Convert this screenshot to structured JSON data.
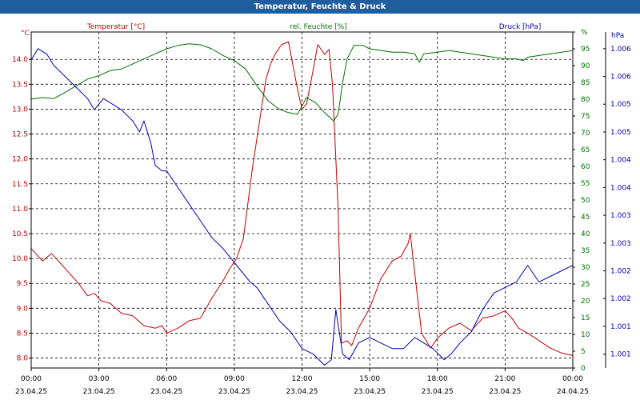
{
  "header": {
    "title": "Temperatur, Feuchte & Druck"
  },
  "chart_data": {
    "type": "line",
    "title": "Temperatur, Feuchte & Druck",
    "x_ticks": [
      {
        "time": "00:00",
        "date": "23.04.25"
      },
      {
        "time": "03:00",
        "date": "23.04.25"
      },
      {
        "time": "06:00",
        "date": "23.04.25"
      },
      {
        "time": "09:00",
        "date": "23.04.25"
      },
      {
        "time": "12:00",
        "date": "23.04.25"
      },
      {
        "time": "15:00",
        "date": "23.04.25"
      },
      {
        "time": "18:00",
        "date": "23.04.25"
      },
      {
        "time": "21:00",
        "date": "23.04.25"
      },
      {
        "time": "00:00",
        "date": "24.04.25"
      }
    ],
    "xlim": [
      0,
      24
    ],
    "colors": {
      "temperature": "#c00000",
      "humidity": "#007000",
      "pressure": "#0000b0"
    },
    "axes": {
      "temperature": {
        "unit": "°C",
        "legend": "Temperatur [°C]",
        "ylim": [
          7.8,
          14.55
        ],
        "ticks": [
          "8.0",
          "8.5",
          "9.0",
          "9.5",
          "10.0",
          "10.5",
          "11.0",
          "11.5",
          "12.0",
          "12.5",
          "13.0",
          "13.5",
          "14.0"
        ]
      },
      "humidity": {
        "unit": "%",
        "legend": "rel. Feuchte [%]",
        "ylim": [
          0,
          100
        ],
        "ticks": [
          "0",
          "5",
          "10",
          "15",
          "20",
          "25",
          "30",
          "35",
          "40",
          "45",
          "50",
          "55",
          "60",
          "65",
          "70",
          "75",
          "80",
          "85",
          "90",
          "95",
          "%"
        ]
      },
      "pressure": {
        "unit": "hPa",
        "legend": "Druck [hPa]",
        "ticks": [
          "1.001",
          "1.001",
          "1.002",
          "1.002",
          "1.003",
          "1.003",
          "1.004",
          "1.004",
          "1.005",
          "1.005",
          "1.006",
          "1.006",
          "hPa"
        ]
      }
    },
    "series": [
      {
        "name": "Temperatur [°C]",
        "axis": "temperature",
        "points": [
          [
            0,
            10.2
          ],
          [
            0.5,
            9.95
          ],
          [
            0.9,
            10.1
          ],
          [
            1.3,
            9.9
          ],
          [
            1.7,
            9.7
          ],
          [
            2.1,
            9.5
          ],
          [
            2.5,
            9.25
          ],
          [
            2.8,
            9.3
          ],
          [
            3.1,
            9.15
          ],
          [
            3.5,
            9.1
          ],
          [
            4.0,
            8.9
          ],
          [
            4.5,
            8.85
          ],
          [
            5.0,
            8.65
          ],
          [
            5.5,
            8.6
          ],
          [
            5.8,
            8.65
          ],
          [
            6.0,
            8.5
          ],
          [
            6.5,
            8.6
          ],
          [
            7.0,
            8.75
          ],
          [
            7.5,
            8.8
          ],
          [
            8.0,
            9.2
          ],
          [
            8.5,
            9.55
          ],
          [
            8.8,
            9.8
          ],
          [
            9.1,
            10.0
          ],
          [
            9.4,
            10.4
          ],
          [
            9.8,
            11.8
          ],
          [
            10.2,
            13.0
          ],
          [
            10.4,
            13.6
          ],
          [
            10.6,
            13.9
          ],
          [
            10.8,
            14.1
          ],
          [
            11.1,
            14.3
          ],
          [
            11.4,
            14.35
          ],
          [
            11.8,
            13.4
          ],
          [
            12.0,
            13.0
          ],
          [
            12.2,
            13.1
          ],
          [
            12.5,
            13.8
          ],
          [
            12.7,
            14.3
          ],
          [
            13.0,
            14.1
          ],
          [
            13.2,
            14.2
          ],
          [
            13.35,
            13.5
          ],
          [
            13.6,
            11.0
          ],
          [
            13.75,
            8.3
          ],
          [
            14.0,
            8.35
          ],
          [
            14.2,
            8.25
          ],
          [
            14.5,
            8.6
          ],
          [
            15.0,
            9.0
          ],
          [
            15.5,
            9.6
          ],
          [
            16.0,
            9.95
          ],
          [
            16.4,
            10.05
          ],
          [
            16.7,
            10.3
          ],
          [
            16.8,
            10.5
          ],
          [
            17.0,
            9.7
          ],
          [
            17.3,
            8.5
          ],
          [
            17.7,
            8.2
          ],
          [
            18.0,
            8.4
          ],
          [
            18.5,
            8.6
          ],
          [
            19.0,
            8.7
          ],
          [
            19.5,
            8.55
          ],
          [
            20.0,
            8.8
          ],
          [
            20.5,
            8.85
          ],
          [
            21.0,
            8.95
          ],
          [
            21.3,
            8.8
          ],
          [
            21.6,
            8.6
          ],
          [
            22.0,
            8.5
          ],
          [
            22.5,
            8.35
          ],
          [
            23.0,
            8.2
          ],
          [
            23.5,
            8.1
          ],
          [
            24.0,
            8.05
          ]
        ]
      },
      {
        "name": "rel. Feuchte [%]",
        "axis": "humidity",
        "points": [
          [
            0,
            80
          ],
          [
            0.5,
            80.5
          ],
          [
            1.0,
            80.2
          ],
          [
            1.5,
            82
          ],
          [
            2.0,
            84
          ],
          [
            2.5,
            86
          ],
          [
            3.0,
            87
          ],
          [
            3.5,
            88.5
          ],
          [
            4.0,
            89
          ],
          [
            4.5,
            90.5
          ],
          [
            5.0,
            92
          ],
          [
            5.5,
            93.5
          ],
          [
            6.0,
            95
          ],
          [
            6.5,
            96
          ],
          [
            7.0,
            96.5
          ],
          [
            7.5,
            96.2
          ],
          [
            8.0,
            95
          ],
          [
            8.5,
            93
          ],
          [
            9.0,
            91.5
          ],
          [
            9.5,
            89
          ],
          [
            10.0,
            84
          ],
          [
            10.5,
            79.5
          ],
          [
            11.0,
            77
          ],
          [
            11.4,
            76
          ],
          [
            11.8,
            75.5
          ],
          [
            12.0,
            78
          ],
          [
            12.2,
            80.5
          ],
          [
            12.6,
            79
          ],
          [
            13.0,
            76
          ],
          [
            13.4,
            73.5
          ],
          [
            13.6,
            75.5
          ],
          [
            13.8,
            85
          ],
          [
            14.0,
            92
          ],
          [
            14.3,
            96
          ],
          [
            14.7,
            96
          ],
          [
            15.0,
            95
          ],
          [
            15.5,
            94.5
          ],
          [
            16.0,
            94
          ],
          [
            16.5,
            94
          ],
          [
            17.0,
            93.5
          ],
          [
            17.2,
            91
          ],
          [
            17.4,
            93.5
          ],
          [
            18.0,
            94
          ],
          [
            18.5,
            94.5
          ],
          [
            19.0,
            94
          ],
          [
            19.5,
            93.5
          ],
          [
            20.0,
            93
          ],
          [
            20.5,
            92.5
          ],
          [
            21.0,
            92
          ],
          [
            21.5,
            92
          ],
          [
            21.8,
            91.5
          ],
          [
            22.0,
            92.5
          ],
          [
            22.5,
            93
          ],
          [
            23.0,
            93.5
          ],
          [
            23.5,
            94
          ],
          [
            24.0,
            94.5
          ]
        ]
      },
      {
        "name": "Druck [hPa]",
        "axis": "pressure",
        "points": [
          [
            0,
            1.0063
          ],
          [
            0.3,
            1.0065
          ],
          [
            0.7,
            1.0064
          ],
          [
            1.0,
            1.0062
          ],
          [
            1.5,
            1.006
          ],
          [
            2.0,
            1.0058
          ],
          [
            2.5,
            1.0056
          ],
          [
            2.8,
            1.0054
          ],
          [
            3.0,
            1.0055
          ],
          [
            3.2,
            1.0056
          ],
          [
            3.6,
            1.0055
          ],
          [
            4.0,
            1.0054
          ],
          [
            4.5,
            1.0052
          ],
          [
            4.8,
            1.005
          ],
          [
            5.0,
            1.0052
          ],
          [
            5.3,
            1.0048
          ],
          [
            5.5,
            1.0044
          ],
          [
            5.8,
            1.0043
          ],
          [
            6.0,
            1.0043
          ],
          [
            6.5,
            1.004
          ],
          [
            7.0,
            1.0037
          ],
          [
            7.5,
            1.0034
          ],
          [
            8.0,
            1.0031
          ],
          [
            8.5,
            1.0029
          ],
          [
            8.9,
            1.0027
          ],
          [
            9.3,
            1.0025
          ],
          [
            9.7,
            1.0023
          ],
          [
            10.0,
            1.0022
          ],
          [
            10.5,
            1.0019
          ],
          [
            11.0,
            1.0016
          ],
          [
            11.5,
            1.0014
          ],
          [
            12.0,
            1.0011
          ],
          [
            12.5,
            1.001
          ],
          [
            13.0,
            1.0008
          ],
          [
            13.3,
            1.0009
          ],
          [
            13.5,
            1.0018
          ],
          [
            13.8,
            1.001
          ],
          [
            14.1,
            1.0009
          ],
          [
            14.5,
            1.0012
          ],
          [
            15.0,
            1.0013
          ],
          [
            15.5,
            1.0012
          ],
          [
            16.0,
            1.0011
          ],
          [
            16.5,
            1.0011
          ],
          [
            17.0,
            1.0013
          ],
          [
            17.4,
            1.0012
          ],
          [
            17.8,
            1.0011
          ],
          [
            18.3,
            1.0009
          ],
          [
            18.6,
            1.001
          ],
          [
            19.0,
            1.0012
          ],
          [
            19.5,
            1.0014
          ],
          [
            20.0,
            1.0018
          ],
          [
            20.5,
            1.0021
          ],
          [
            21.0,
            1.0022
          ],
          [
            21.5,
            1.0023
          ],
          [
            22.0,
            1.0026
          ],
          [
            22.5,
            1.0023
          ],
          [
            23.0,
            1.0024
          ],
          [
            23.5,
            1.0025
          ],
          [
            24.0,
            1.0026
          ]
        ]
      }
    ]
  }
}
